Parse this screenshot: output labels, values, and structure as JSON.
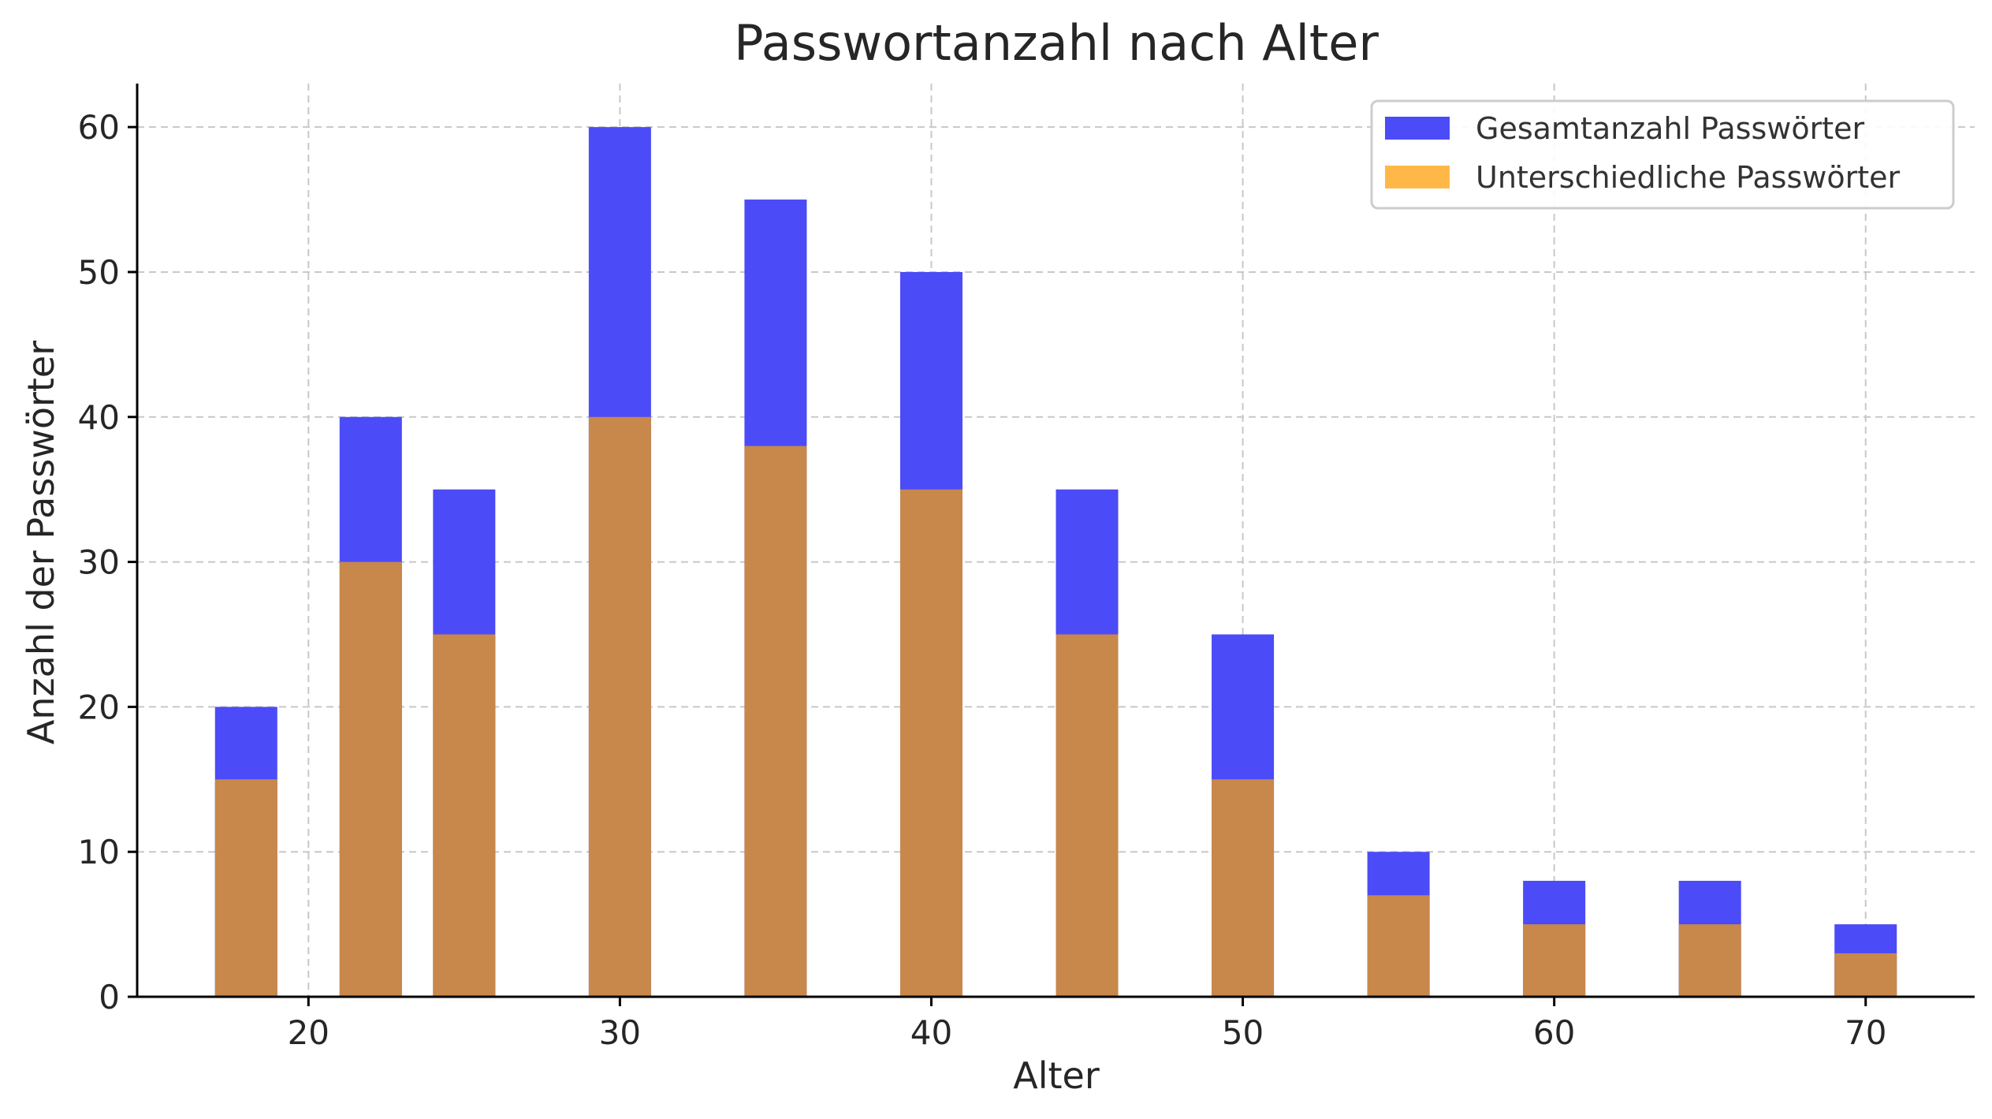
{
  "chart_data": {
    "type": "bar",
    "title": "Passwortanzahl nach Alter",
    "xlabel": "Alter",
    "ylabel": "Anzahl der Passwörter",
    "xlim": [
      14.5,
      73.5
    ],
    "ylim": [
      0,
      63
    ],
    "x_ticks": [
      20,
      30,
      40,
      50,
      60,
      70
    ],
    "y_ticks": [
      0,
      10,
      20,
      30,
      40,
      50,
      60
    ],
    "bar_width": 2,
    "grid": true,
    "legend_position": "top-right",
    "x": [
      18,
      22,
      25,
      30,
      35,
      40,
      45,
      50,
      55,
      60,
      65,
      70
    ],
    "series": [
      {
        "name": "Gesamtanzahl Passwörter",
        "color": "#4b4bf7",
        "values": [
          20,
          40,
          35,
          60,
          55,
          50,
          35,
          25,
          10,
          8,
          8,
          5
        ]
      },
      {
        "name": "Unterschiedliche Passwörter",
        "color": "#c8884b",
        "legend_color": "#ffb847",
        "values": [
          15,
          30,
          25,
          40,
          38,
          35,
          25,
          15,
          7,
          5,
          5,
          3
        ]
      }
    ]
  }
}
